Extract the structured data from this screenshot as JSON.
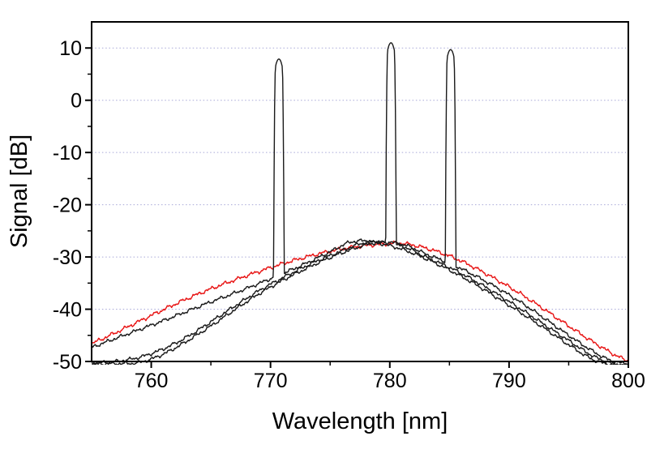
{
  "figure": {
    "title": "",
    "background": "#ffffff"
  },
  "chart_data": {
    "type": "line",
    "title": "",
    "xlabel": "Wavelength [nm]",
    "ylabel": "Signal [dB]",
    "xlim": [
      755,
      800
    ],
    "ylim": [
      -50,
      15
    ],
    "x_major_ticks": [
      760,
      770,
      780,
      790,
      800
    ],
    "x_minor_ticks": [
      765,
      775,
      785,
      795
    ],
    "y_major_ticks": [
      10,
      0,
      -10,
      -20,
      -30,
      -40,
      -50
    ],
    "y_minor_ticks": [
      5,
      -5,
      -15,
      -25,
      -35,
      -45
    ],
    "grid": {
      "horizontal": true,
      "vertical": false,
      "style": "dotted",
      "color": "#a8a8d8",
      "at": [
        10,
        0,
        -10,
        -20,
        -30,
        -40
      ]
    },
    "axis_color": "#000000",
    "frame": "box",
    "legend": "none",
    "spike_shape": {
      "cap_k": 18,
      "cap_halfwidth_nm": 0.28,
      "flank_k": 1400
    },
    "series": [
      {
        "name": "red-broad-spectrum",
        "color": "#e81414",
        "noise_db": 1.0,
        "points": [
          [
            755,
            -46.6
          ],
          [
            757,
            -44.5
          ],
          [
            759,
            -42.3
          ],
          [
            761,
            -40.1
          ],
          [
            763,
            -38.0
          ],
          [
            765,
            -36.1
          ],
          [
            767,
            -34.4
          ],
          [
            769,
            -32.8
          ],
          [
            771,
            -31.3
          ],
          [
            773,
            -30.0
          ],
          [
            775,
            -28.9
          ],
          [
            777,
            -28.1
          ],
          [
            779,
            -27.6
          ],
          [
            781,
            -27.4
          ],
          [
            783,
            -28.3
          ],
          [
            785,
            -29.8
          ],
          [
            787,
            -31.9
          ],
          [
            789,
            -34.4
          ],
          [
            791,
            -37.1
          ],
          [
            793,
            -40.1
          ],
          [
            795,
            -43.2
          ],
          [
            797,
            -46.2
          ],
          [
            799,
            -48.9
          ],
          [
            800,
            -49.9
          ]
        ]
      },
      {
        "name": "black-trace-seeded-771nm",
        "color": "#1a1a1a",
        "noise_db": 0.9,
        "spike": {
          "center_nm": 770.7,
          "top_db": 7.9
        },
        "points": [
          [
            755,
            -47.3
          ],
          [
            757,
            -45.6
          ],
          [
            759,
            -43.9
          ],
          [
            761,
            -42.2
          ],
          [
            763,
            -40.4
          ],
          [
            765,
            -38.6
          ],
          [
            767,
            -36.9
          ],
          [
            769,
            -35.1
          ],
          [
            771,
            -33.2
          ],
          [
            773,
            -31.2
          ],
          [
            775,
            -29.0
          ],
          [
            776.5,
            -27.3
          ],
          [
            777.8,
            -26.9
          ],
          [
            779,
            -27.3
          ],
          [
            781,
            -28.5
          ],
          [
            783,
            -30.3
          ],
          [
            785,
            -32.5
          ],
          [
            787,
            -35.0
          ],
          [
            789,
            -37.8
          ],
          [
            791,
            -40.7
          ],
          [
            793,
            -43.7
          ],
          [
            795,
            -46.8
          ],
          [
            797,
            -49.6
          ],
          [
            798.5,
            -50.6
          ],
          [
            800,
            -51.0
          ]
        ]
      },
      {
        "name": "black-trace-seeded-780nm",
        "color": "#1a1a1a",
        "noise_db": 0.9,
        "spike": {
          "center_nm": 780.1,
          "top_db": 11.0
        },
        "points": [
          [
            755,
            -50.3
          ],
          [
            757,
            -50.0
          ],
          [
            759,
            -49.2
          ],
          [
            761,
            -47.6
          ],
          [
            763,
            -45.3
          ],
          [
            765,
            -42.4
          ],
          [
            767,
            -39.4
          ],
          [
            769,
            -36.5
          ],
          [
            771,
            -34.0
          ],
          [
            773,
            -31.7
          ],
          [
            774.5,
            -30.2
          ],
          [
            776,
            -28.8
          ],
          [
            777.5,
            -27.5
          ],
          [
            778.7,
            -27.1
          ],
          [
            780,
            -27.3
          ],
          [
            781.5,
            -28.3
          ],
          [
            783,
            -30.0
          ],
          [
            785,
            -32.0
          ],
          [
            787,
            -34.4
          ],
          [
            789,
            -37.1
          ],
          [
            791,
            -40.0
          ],
          [
            793,
            -43.0
          ],
          [
            795,
            -46.0
          ],
          [
            797,
            -48.9
          ],
          [
            798.5,
            -50.3
          ],
          [
            800,
            -50.8
          ]
        ]
      },
      {
        "name": "black-trace-seeded-785nm",
        "color": "#1a1a1a",
        "noise_db": 0.9,
        "spike": {
          "center_nm": 785.1,
          "top_db": 9.7
        },
        "points": [
          [
            755,
            -50.5
          ],
          [
            757,
            -50.4
          ],
          [
            759,
            -50.2
          ],
          [
            761,
            -48.6
          ],
          [
            763,
            -46.1
          ],
          [
            765,
            -43.2
          ],
          [
            767,
            -40.1
          ],
          [
            769,
            -37.1
          ],
          [
            771,
            -34.5
          ],
          [
            773,
            -32.2
          ],
          [
            775,
            -30.1
          ],
          [
            777,
            -28.4
          ],
          [
            778.5,
            -27.4
          ],
          [
            780,
            -27.2
          ],
          [
            781.5,
            -27.9
          ],
          [
            783,
            -29.4
          ],
          [
            785,
            -31.2
          ],
          [
            787,
            -33.4
          ],
          [
            789,
            -35.9
          ],
          [
            791,
            -38.7
          ],
          [
            793,
            -41.8
          ],
          [
            795,
            -45.0
          ],
          [
            797,
            -48.0
          ],
          [
            798.5,
            -49.8
          ],
          [
            800,
            -50.5
          ]
        ]
      }
    ]
  }
}
